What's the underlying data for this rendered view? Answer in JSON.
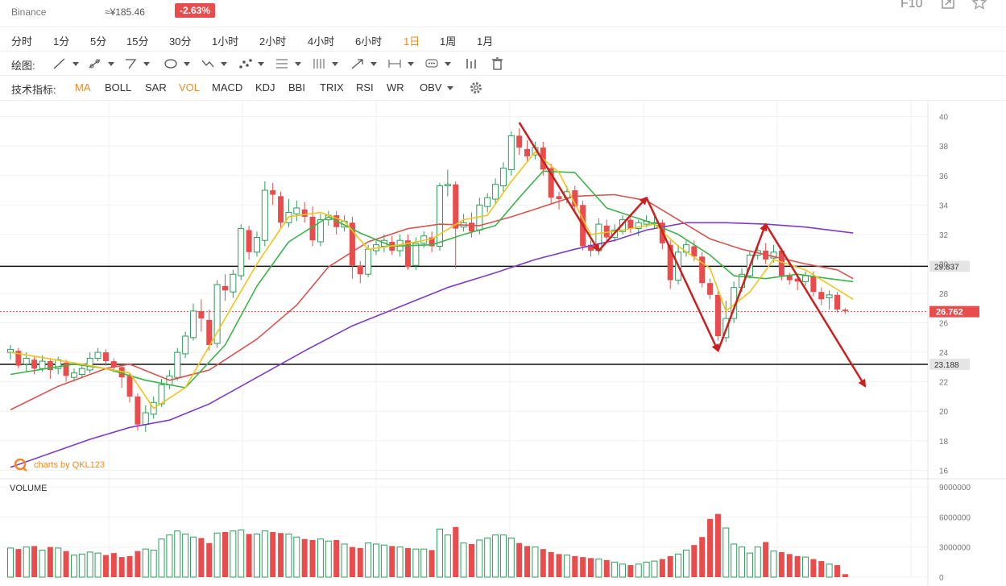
{
  "header": {
    "exchange": "Binance",
    "price_cny": "≈¥185.46",
    "change": "-2.63%",
    "right_label": "F10"
  },
  "intervals": [
    "分时",
    "1分",
    "5分",
    "15分",
    "30分",
    "1小时",
    "2小时",
    "4小时",
    "6小时",
    "1日",
    "1周",
    "1月"
  ],
  "active_interval": "1日",
  "drawing": {
    "label": "绘图:",
    "tools": [
      "line-tool-icon",
      "ray-tool-icon",
      "triangle-tool-icon",
      "circle-tool-icon",
      "path-tool-icon",
      "pattern-tool-icon",
      "fib-tool-icon",
      "grid-tool-icon",
      "arrow-tool-icon",
      "measure-tool-icon",
      "text-tool-icon",
      "bars-tool-icon",
      "trash-icon"
    ]
  },
  "indicators": {
    "label": "技术指标:",
    "items": [
      "MA",
      "BOLL",
      "SAR",
      "VOL",
      "MACD",
      "KDJ",
      "BBI",
      "TRIX",
      "RSI",
      "WR",
      "OBV"
    ],
    "active": [
      "MA",
      "VOL"
    ]
  },
  "colors": {
    "up": "#2e9e5b",
    "down": "#e84c4c",
    "ma5": "#f0c419",
    "ma10": "#3cb44b",
    "ma20": "#d9534f",
    "ma60": "#7d3cc8",
    "arrow": "#cc1f1f",
    "accent": "#f08a24"
  },
  "chart_data": {
    "type": "candlestick",
    "price_axis": {
      "ticks": [
        16,
        18,
        20,
        22,
        24,
        26,
        28,
        30,
        32,
        34,
        36,
        38,
        40
      ],
      "ylim": [
        15.8,
        40.2
      ]
    },
    "horizontal_lines": [
      29.837,
      23.188
    ],
    "current_price": 26.762,
    "watermark": "charts by QKL123",
    "candles": [
      [
        24.0,
        24.2,
        24.5,
        23.5
      ],
      [
        24.1,
        23.1,
        24.3,
        22.9
      ],
      [
        23.2,
        23.6,
        24.0,
        22.7
      ],
      [
        23.5,
        22.9,
        23.7,
        22.5
      ],
      [
        22.9,
        23.4,
        23.8,
        22.7
      ],
      [
        23.4,
        22.8,
        23.6,
        22.2
      ],
      [
        22.9,
        23.5,
        23.7,
        22.5
      ],
      [
        23.3,
        22.4,
        23.5,
        22.0
      ],
      [
        22.3,
        22.6,
        22.9,
        22.0
      ],
      [
        22.5,
        22.9,
        23.2,
        22.3
      ],
      [
        22.8,
        23.6,
        24.0,
        22.6
      ],
      [
        23.6,
        24.0,
        24.3,
        23.4
      ],
      [
        24.0,
        23.4,
        24.2,
        23.1
      ],
      [
        23.4,
        23.0,
        23.6,
        22.8
      ],
      [
        23.0,
        22.3,
        23.2,
        21.6
      ],
      [
        22.4,
        21.0,
        22.6,
        20.6
      ],
      [
        21.0,
        19.1,
        21.2,
        18.7
      ],
      [
        19.1,
        19.9,
        20.4,
        18.6
      ],
      [
        19.8,
        20.6,
        21.0,
        19.5
      ],
      [
        20.5,
        21.8,
        22.2,
        20.3
      ],
      [
        21.8,
        22.4,
        22.8,
        21.5
      ],
      [
        22.3,
        24.0,
        24.3,
        22.1
      ],
      [
        23.9,
        25.1,
        25.4,
        23.6
      ],
      [
        25.0,
        26.8,
        27.3,
        24.8
      ],
      [
        26.8,
        26.3,
        27.6,
        25.4
      ],
      [
        26.2,
        24.5,
        26.9,
        24.1
      ],
      [
        24.6,
        28.6,
        28.9,
        24.3
      ],
      [
        28.5,
        28.2,
        29.3,
        27.5
      ],
      [
        28.1,
        29.3,
        29.6,
        27.7
      ],
      [
        29.2,
        32.4,
        32.7,
        28.9
      ],
      [
        32.3,
        30.8,
        32.6,
        30.3
      ],
      [
        30.8,
        31.8,
        32.2,
        30.5
      ],
      [
        31.6,
        35.0,
        35.6,
        31.2
      ],
      [
        35.0,
        34.7,
        35.5,
        34.0
      ],
      [
        34.6,
        32.8,
        34.9,
        32.5
      ],
      [
        32.8,
        33.5,
        34.4,
        32.5
      ],
      [
        33.4,
        33.8,
        34.3,
        32.9
      ],
      [
        33.7,
        33.2,
        34.2,
        32.8
      ],
      [
        33.2,
        31.6,
        33.9,
        31.2
      ],
      [
        31.5,
        33.0,
        33.4,
        31.2
      ],
      [
        33.0,
        33.3,
        33.6,
        32.6
      ],
      [
        33.3,
        32.5,
        33.6,
        32.0
      ],
      [
        32.5,
        32.9,
        33.3,
        32.2
      ],
      [
        32.8,
        29.9,
        33.2,
        29.0
      ],
      [
        29.9,
        29.3,
        30.2,
        28.7
      ],
      [
        29.3,
        31.0,
        31.3,
        29.1
      ],
      [
        30.9,
        31.3,
        31.7,
        30.6
      ],
      [
        31.2,
        31.6,
        32.0,
        30.8
      ],
      [
        31.5,
        30.9,
        31.9,
        30.6
      ],
      [
        30.9,
        31.6,
        32.0,
        30.5
      ],
      [
        31.6,
        29.8,
        32.0,
        29.6
      ],
      [
        29.9,
        31.4,
        31.8,
        29.6
      ],
      [
        31.4,
        31.9,
        32.2,
        31.1
      ],
      [
        31.8,
        31.2,
        32.2,
        30.8
      ],
      [
        31.2,
        35.3,
        35.5,
        30.9
      ],
      [
        35.3,
        35.4,
        36.4,
        34.6
      ],
      [
        35.4,
        32.4,
        35.6,
        29.7
      ],
      [
        32.5,
        32.8,
        33.4,
        32.2
      ],
      [
        32.8,
        32.2,
        33.5,
        31.8
      ],
      [
        32.3,
        34.0,
        34.5,
        32.0
      ],
      [
        33.9,
        34.5,
        34.8,
        33.5
      ],
      [
        34.4,
        35.4,
        35.8,
        34.0
      ],
      [
        35.3,
        36.5,
        36.9,
        34.9
      ],
      [
        36.4,
        38.7,
        39.0,
        36.0
      ],
      [
        38.7,
        37.9,
        39.2,
        37.4
      ],
      [
        37.8,
        37.3,
        38.4,
        37.0
      ],
      [
        37.4,
        37.9,
        38.3,
        37.1
      ],
      [
        37.9,
        36.4,
        38.3,
        36.0
      ],
      [
        36.5,
        34.5,
        36.8,
        34.1
      ],
      [
        34.6,
        34.4,
        34.9,
        33.7
      ],
      [
        34.5,
        34.9,
        35.3,
        34.1
      ],
      [
        35.0,
        33.9,
        35.3,
        33.6
      ],
      [
        34.0,
        31.2,
        34.3,
        30.9
      ],
      [
        31.3,
        30.9,
        31.6,
        30.5
      ],
      [
        30.9,
        32.7,
        33.1,
        30.6
      ],
      [
        32.6,
        31.8,
        33.0,
        31.5
      ],
      [
        31.8,
        32.3,
        32.7,
        31.5
      ],
      [
        32.2,
        33.0,
        33.3,
        32.0
      ],
      [
        33.0,
        32.4,
        33.3,
        32.1
      ],
      [
        32.4,
        32.8,
        33.0,
        31.9
      ],
      [
        32.7,
        32.9,
        33.3,
        32.5
      ],
      [
        32.8,
        32.8,
        33.5,
        32.4
      ],
      [
        32.8,
        31.4,
        33.0,
        31.0
      ],
      [
        31.3,
        28.9,
        31.6,
        28.3
      ],
      [
        28.9,
        30.8,
        31.3,
        28.6
      ],
      [
        30.8,
        31.3,
        31.6,
        30.5
      ],
      [
        31.2,
        30.5,
        31.6,
        30.2
      ],
      [
        30.5,
        28.7,
        30.8,
        28.4
      ],
      [
        28.7,
        27.9,
        29.0,
        27.6
      ],
      [
        27.9,
        25.1,
        28.2,
        24.8
      ],
      [
        25.0,
        26.3,
        27.5,
        24.7
      ],
      [
        26.3,
        28.4,
        28.8,
        26.0
      ],
      [
        28.4,
        29.3,
        29.7,
        28.1
      ],
      [
        29.2,
        30.6,
        30.9,
        29.0
      ],
      [
        30.6,
        30.9,
        31.3,
        30.3
      ],
      [
        30.9,
        30.3,
        31.4,
        30.0
      ],
      [
        30.4,
        30.8,
        31.3,
        30.1
      ],
      [
        30.9,
        29.2,
        31.1,
        28.9
      ],
      [
        29.2,
        28.9,
        29.4,
        28.6
      ],
      [
        29.0,
        28.8,
        29.3,
        28.2
      ],
      [
        28.8,
        29.2,
        29.5,
        28.5
      ],
      [
        29.2,
        28.1,
        29.5,
        27.8
      ],
      [
        28.1,
        27.6,
        28.4,
        27.2
      ],
      [
        27.7,
        27.9,
        28.2,
        26.9
      ],
      [
        27.9,
        26.9,
        28.1,
        26.7
      ],
      [
        26.9,
        26.8,
        27.0,
        26.6
      ]
    ],
    "ma5": [
      [
        0,
        24.0
      ],
      [
        10,
        23.1
      ],
      [
        15,
        22.6
      ],
      [
        18,
        20.2
      ],
      [
        22,
        21.6
      ],
      [
        27,
        26.3
      ],
      [
        31,
        30.0
      ],
      [
        35,
        33.2
      ],
      [
        39,
        33.5
      ],
      [
        42,
        32.9
      ],
      [
        45,
        31.0
      ],
      [
        49,
        31.3
      ],
      [
        53,
        31.7
      ],
      [
        57,
        33.0
      ],
      [
        60,
        33.3
      ],
      [
        63,
        35.6
      ],
      [
        66,
        37.6
      ],
      [
        69,
        36.2
      ],
      [
        73,
        32.0
      ],
      [
        77,
        32.3
      ],
      [
        81,
        32.7
      ],
      [
        84,
        31.2
      ],
      [
        88,
        29.7
      ],
      [
        90,
        26.8
      ],
      [
        93,
        28.1
      ],
      [
        96,
        30.3
      ],
      [
        100,
        29.6
      ],
      [
        103,
        28.6
      ],
      [
        106,
        27.6
      ]
    ],
    "ma10": [
      [
        0,
        22.5
      ],
      [
        8,
        23.2
      ],
      [
        12,
        22.9
      ],
      [
        17,
        22.1
      ],
      [
        22,
        21.6
      ],
      [
        27,
        24.5
      ],
      [
        31,
        28.5
      ],
      [
        35,
        31.5
      ],
      [
        40,
        33.2
      ],
      [
        44,
        32.1
      ],
      [
        48,
        31.2
      ],
      [
        53,
        31.3
      ],
      [
        57,
        32.0
      ],
      [
        61,
        32.6
      ],
      [
        64,
        34.5
      ],
      [
        67,
        36.3
      ],
      [
        71,
        36.2
      ],
      [
        75,
        33.8
      ],
      [
        80,
        32.9
      ],
      [
        84,
        32.0
      ],
      [
        88,
        30.6
      ],
      [
        91,
        29.2
      ],
      [
        95,
        29.0
      ],
      [
        99,
        29.3
      ],
      [
        103,
        29.0
      ],
      [
        106,
        28.8
      ]
    ],
    "ma20": [
      [
        0,
        20.1
      ],
      [
        6,
        21.7
      ],
      [
        12,
        22.9
      ],
      [
        15,
        23.2
      ],
      [
        20,
        22.1
      ],
      [
        25,
        22.8
      ],
      [
        31,
        24.9
      ],
      [
        36,
        27.2
      ],
      [
        40,
        29.8
      ],
      [
        45,
        31.5
      ],
      [
        50,
        32.4
      ],
      [
        54,
        32.7
      ],
      [
        59,
        32.6
      ],
      [
        63,
        33.2
      ],
      [
        67,
        33.9
      ],
      [
        71,
        34.6
      ],
      [
        76,
        34.7
      ],
      [
        80,
        34.3
      ],
      [
        84,
        33.0
      ],
      [
        88,
        31.7
      ],
      [
        92,
        31.0
      ],
      [
        96,
        30.5
      ],
      [
        100,
        30.0
      ],
      [
        104,
        29.6
      ],
      [
        106,
        29.0
      ]
    ],
    "ma60": [
      [
        0,
        16.2
      ],
      [
        10,
        18.1
      ],
      [
        15,
        18.9
      ],
      [
        20,
        19.4
      ],
      [
        25,
        20.5
      ],
      [
        31,
        22.3
      ],
      [
        37,
        24.1
      ],
      [
        43,
        25.8
      ],
      [
        49,
        27.1
      ],
      [
        55,
        28.4
      ],
      [
        61,
        29.4
      ],
      [
        66,
        30.3
      ],
      [
        71,
        31.0
      ],
      [
        76,
        31.6
      ],
      [
        80,
        32.3
      ],
      [
        85,
        32.8
      ],
      [
        90,
        32.8
      ],
      [
        95,
        32.7
      ],
      [
        100,
        32.5
      ],
      [
        106,
        32.1
      ]
    ],
    "annotation_arrows": [
      [
        [
          64,
          39.6
        ],
        [
          74,
          30.9
        ]
      ],
      [
        [
          74,
          30.9
        ],
        [
          80,
          34.5
        ]
      ],
      [
        [
          80,
          34.5
        ],
        [
          89,
          24.1
        ]
      ],
      [
        [
          89,
          24.1
        ],
        [
          95,
          32.7
        ]
      ],
      [
        [
          95,
          32.7
        ],
        [
          107.5,
          21.7
        ]
      ]
    ],
    "volume": {
      "label": "VOLUME",
      "ticks": [
        0,
        3000000,
        6000000,
        9000000
      ],
      "tick_labels": [
        "0",
        "3000000",
        "6000000",
        "9000000"
      ],
      "values": [
        2900000,
        2800000,
        3000000,
        3100000,
        2700000,
        3000000,
        2900000,
        2600000,
        2200000,
        2300000,
        2500000,
        2400000,
        2200000,
        2400000,
        2000000,
        2100000,
        2600000,
        2800000,
        2700000,
        3800000,
        4200000,
        4600000,
        4300000,
        4000000,
        3900000,
        3400000,
        4400000,
        4500000,
        4600000,
        4700000,
        4300000,
        4300000,
        4600000,
        4500000,
        4400000,
        4300000,
        4000000,
        3800000,
        3700000,
        3800000,
        3600000,
        3700000,
        3300000,
        3000000,
        2900000,
        3400000,
        3300000,
        3200000,
        3100000,
        3000000,
        2900000,
        2800000,
        2800000,
        2700000,
        4800000,
        4200000,
        5000000,
        3400000,
        3300000,
        3700000,
        3900000,
        4200000,
        4200000,
        3900000,
        3400000,
        3100000,
        3000000,
        2800000,
        2500000,
        2300000,
        2200000,
        2100000,
        2000000,
        1900000,
        1800000,
        1700000,
        1500000,
        1300000,
        1200000,
        1300000,
        1500000,
        1600000,
        1800000,
        2100000,
        2300000,
        2700000,
        3200000,
        4000000,
        5800000,
        6300000,
        4900000,
        3300000,
        3000000,
        2400000,
        3000000,
        3500000,
        2600000,
        2500000,
        2300000,
        2100000,
        2000000,
        1800000,
        1600000,
        1300000,
        1200000,
        300000
      ]
    }
  }
}
